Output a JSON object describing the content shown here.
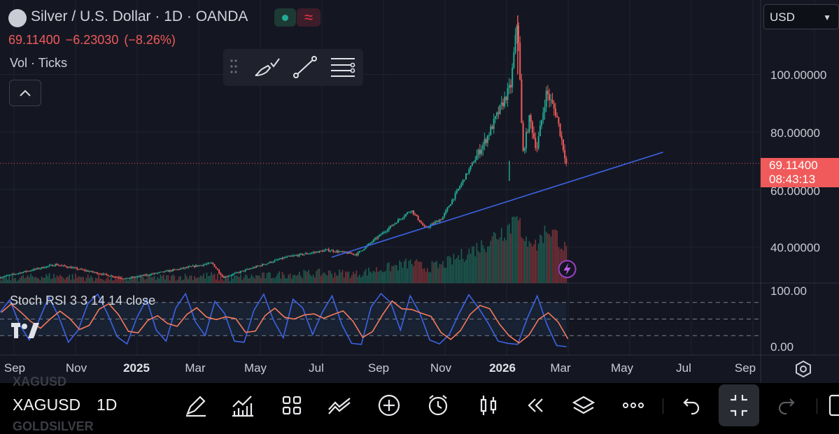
{
  "header": {
    "title": "Silver / U.S. Dollar · 1D · OANDA",
    "session_glyph": "≈",
    "last": "69.11400",
    "change": "−6.23030",
    "change_pct": "(−8.26%)",
    "volume_label": "Vol · Ticks",
    "collapse_glyph": "^"
  },
  "currency_select": {
    "value": "USD"
  },
  "price_axis": {
    "labels": [
      "100.00000",
      "80.00000",
      "60.00000",
      "40.00000"
    ],
    "current_price": "69.11400",
    "countdown": "08:43:13"
  },
  "indicator": {
    "label": "Stoch RSI 3 3 14 14 close",
    "axis_labels": [
      "100.00",
      "0.00"
    ],
    "upper_band": 80,
    "lower_band": 20
  },
  "time_axis": {
    "labels": [
      "Sep",
      "Nov",
      "2025",
      "Mar",
      "May",
      "Jul",
      "Sep",
      "Nov",
      "2026",
      "Mar",
      "May",
      "Jul",
      "Sep"
    ],
    "bold": [
      "2025",
      "2026"
    ]
  },
  "drawing_toolbar": {
    "icons": [
      "drag-handle-icon",
      "brush-icon",
      "trend-line-icon",
      "line-settings-icon"
    ]
  },
  "bottom_bar": {
    "symbol": "XAGUSD",
    "ghost_above": "XAGUSD",
    "ghost_below": "GOLDSILVER",
    "timeframe": "1D",
    "tools": [
      "draw-icon",
      "indicators-icon",
      "layout-icon",
      "compare-icon",
      "add-icon",
      "alert-icon",
      "candle-type-icon",
      "replay-icon",
      "layers-icon",
      "more-icon",
      "undo-icon",
      "fullscreen-exit-icon",
      "redo-icon"
    ]
  },
  "colors": {
    "up": "#22ab94",
    "down": "#f05a5a",
    "trendline": "#3d63e6",
    "stoch_k": "#3d63e6",
    "stoch_d": "#f7795b",
    "background": "#141722"
  },
  "chart_data": {
    "type": "candlestick",
    "symbol": "XAGUSD",
    "interval": "1D",
    "ylim": [
      29,
      121
    ],
    "x_range": [
      "2024-08-27",
      "2026-09-30"
    ],
    "price_anchors": [
      {
        "date": "2024-08-27",
        "close": 29.5
      },
      {
        "date": "2024-10-22",
        "close": 34.0
      },
      {
        "date": "2024-12-31",
        "close": 29.0
      },
      {
        "date": "2025-03-28",
        "close": 34.5
      },
      {
        "date": "2025-04-08",
        "close": 29.5
      },
      {
        "date": "2025-06-10",
        "close": 36.5
      },
      {
        "date": "2025-07-22",
        "close": 39.0
      },
      {
        "date": "2025-08-20",
        "close": 37.5
      },
      {
        "date": "2025-10-14",
        "close": 53.0
      },
      {
        "date": "2025-10-28",
        "close": 46.5
      },
      {
        "date": "2025-11-14",
        "close": 50.0
      },
      {
        "date": "2025-12-29",
        "close": 78.0
      },
      {
        "date": "2026-01-22",
        "close": 96.0
      },
      {
        "date": "2026-01-29",
        "close": 120.0
      },
      {
        "date": "2026-02-03",
        "close": 72.0
      },
      {
        "date": "2026-02-10",
        "close": 85.0
      },
      {
        "date": "2026-02-17",
        "close": 74.0
      },
      {
        "date": "2026-02-27",
        "close": 94.0
      },
      {
        "date": "2026-03-09",
        "close": 86.0
      },
      {
        "date": "2026-03-19",
        "close": 69.114
      }
    ],
    "last_close": 69.114,
    "trendline": {
      "start": {
        "date": "2025-07-26",
        "price": 36.5
      },
      "end": {
        "date": "2026-06-24",
        "price": 73.0
      }
    },
    "stoch_rsi": {
      "k": [
        62,
        85,
        40,
        12,
        48,
        90,
        55,
        8,
        30,
        78,
        95,
        60,
        18,
        5,
        52,
        86,
        30,
        10,
        70,
        96,
        45,
        20,
        82,
        60,
        10,
        8,
        66,
        95,
        48,
        16,
        86,
        70,
        22,
        62,
        92,
        40,
        6,
        4,
        72,
        96,
        80,
        30,
        92,
        60,
        12,
        5,
        22,
        60,
        94,
        70,
        42,
        10,
        6,
        4,
        52,
        92,
        40,
        2,
        0
      ]
    },
    "volume_note": "volume bars rising into 2026, peaking late January"
  }
}
